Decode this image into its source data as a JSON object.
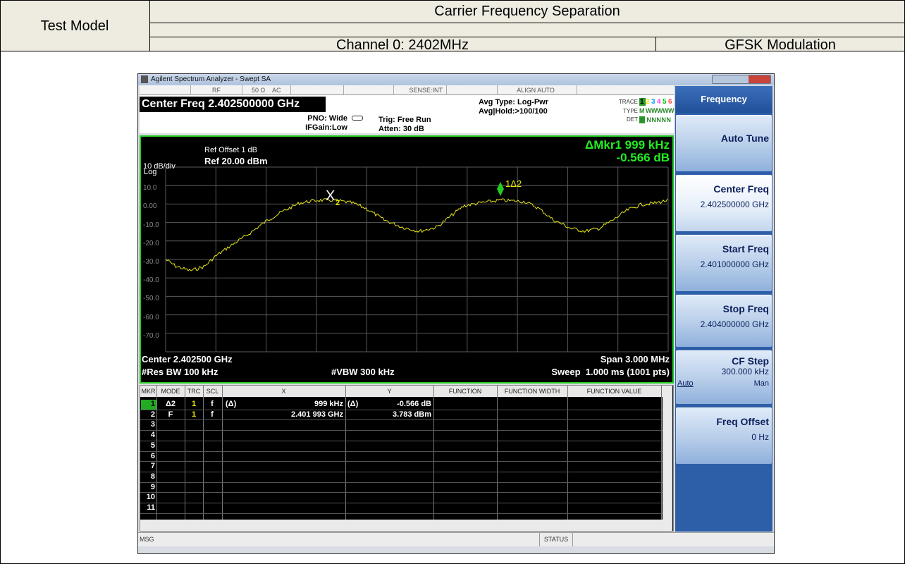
{
  "report": {
    "test_model": "Test Model",
    "title": "Carrier Frequency Separation",
    "channel": "Channel 0: 2402MHz",
    "modulation": "GFSK Modulation"
  },
  "window": {
    "title": "Agilent Spectrum Analyzer - Swept SA"
  },
  "status_bar": {
    "rf": "RF",
    "impedance": "50 Ω",
    "coupling": "AC",
    "sense": "SENSE:INT",
    "align": "ALIGN AUTO"
  },
  "settings": {
    "center_freq": "Center Freq 2.402500000 GHz",
    "pno": "PNO: Wide",
    "ifgain": "IFGain:Low",
    "trig": "Trig: Free Run",
    "atten": "Atten: 30 dB",
    "avg_type": "Avg Type: Log-Pwr",
    "avg_hold": "Avg|Hold:>100/100",
    "trace_label": "TRACE",
    "trace_numbers": [
      "1",
      "2",
      "3",
      "4",
      "5",
      "6"
    ],
    "type_label": "TYPE",
    "type_value": "M WWWWW",
    "det_label": "DET",
    "det_value": "P NNNNN"
  },
  "screen": {
    "ref_offset": "Ref Offset 1 dB",
    "scale": "10 dB/div",
    "ref_level": "Ref 20.00 dBm",
    "log": "Log",
    "marker_readout": "ΔMkr1 999 kHz",
    "marker_value": "-0.566 dB",
    "scale_labels": [
      "10.0",
      "0.00",
      "-10.0",
      "-20.0",
      "-30.0",
      "-40.0",
      "-50.0",
      "-60.0",
      "-70.0"
    ],
    "marker_x": "X",
    "marker_x_sub": "2",
    "marker_delta": "1Δ2",
    "center": "Center 2.402500 GHz",
    "span": "Span 3.000 MHz",
    "res_bw": "#Res BW 100 kHz",
    "vbw": "#VBW 300 kHz",
    "sweep": "Sweep  1.000 ms (1001 pts)"
  },
  "marker_table": {
    "headers": [
      "MKR",
      "MODE",
      "TRC",
      "SCL",
      "X",
      "Y",
      "FUNCTION",
      "FUNCTION WIDTH",
      "FUNCTION VALUE"
    ],
    "rows": [
      {
        "mkr": "1",
        "mode": "Δ2",
        "trc": "1",
        "scl": "f",
        "x_mode": "(Δ)",
        "x": "999 kHz",
        "y_mode": "(Δ)",
        "y": "-0.566 dB"
      },
      {
        "mkr": "2",
        "mode": "F",
        "trc": "1",
        "scl": "f",
        "x": "2.401 993 GHz",
        "y": "3.783 dBm"
      },
      {
        "mkr": "3"
      },
      {
        "mkr": "4"
      },
      {
        "mkr": "5"
      },
      {
        "mkr": "6"
      },
      {
        "mkr": "7"
      },
      {
        "mkr": "8"
      },
      {
        "mkr": "9"
      },
      {
        "mkr": "10"
      },
      {
        "mkr": "11"
      }
    ]
  },
  "softkeys": {
    "menu": "Frequency",
    "keys": [
      {
        "label": "Auto Tune"
      },
      {
        "label": "Center Freq",
        "value": "2.402500000 GHz"
      },
      {
        "label": "Start Freq",
        "value": "2.401000000 GHz"
      },
      {
        "label": "Stop Freq",
        "value": "2.404000000 GHz"
      },
      {
        "label": "CF Step",
        "value": "300.000 kHz",
        "options": [
          "Auto",
          "Man"
        ]
      },
      {
        "label": "Freq Offset",
        "value": "0 Hz"
      }
    ]
  },
  "message_bar": {
    "msg": "MSG",
    "status": "STATUS"
  }
}
